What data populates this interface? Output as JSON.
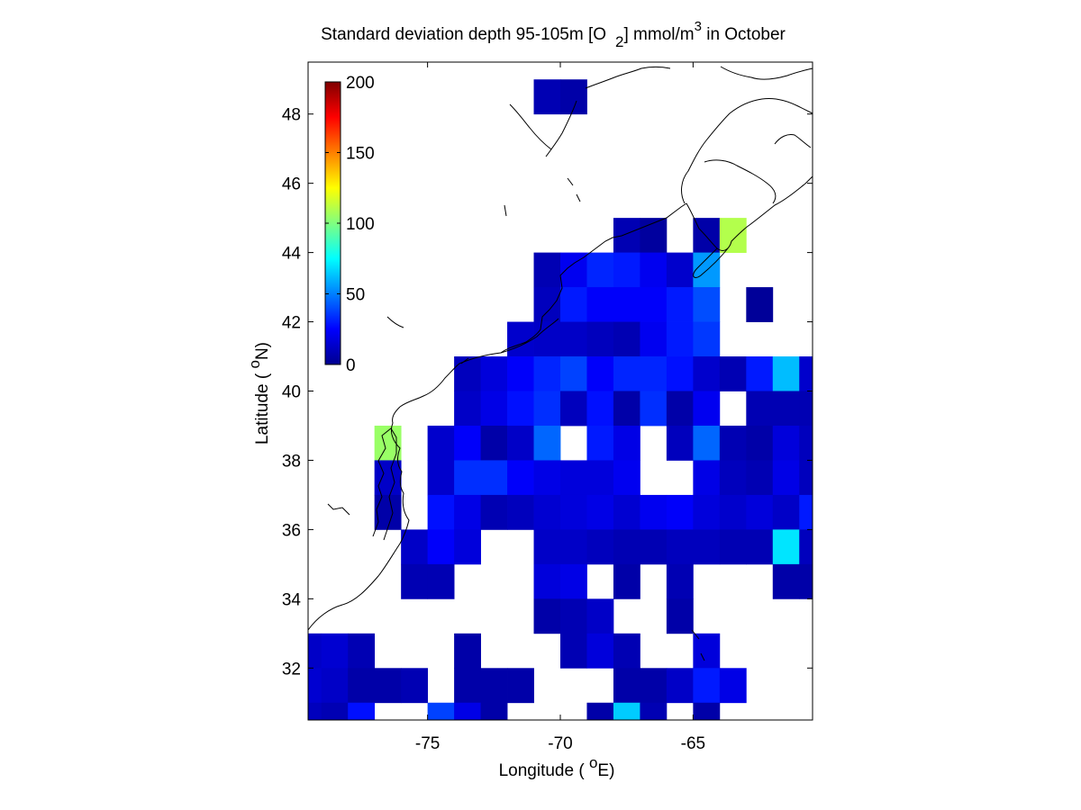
{
  "chart_data": {
    "type": "heatmap",
    "title_main": "Standard deviation depth 95-105m [O",
    "title_sub": "2",
    "title_unit": "] mmol/m",
    "title_sup": "3",
    "title_tail": " in October",
    "xlabel_main": "Longitude ( ",
    "xlabel_sup": "o",
    "xlabel_tail": "E)",
    "ylabel_main": "Latitude ( ",
    "ylabel_sup": "o",
    "ylabel_tail": "N)",
    "xlim": [
      -79.5,
      -60.5
    ],
    "ylim": [
      30.5,
      49.5
    ],
    "x_ticks": [
      -75,
      -70,
      -65
    ],
    "x_tick_labels": [
      "-75",
      "-70",
      "-65"
    ],
    "y_ticks": [
      32,
      34,
      36,
      38,
      40,
      42,
      44,
      46,
      48
    ],
    "y_tick_labels": [
      "32",
      "34",
      "36",
      "38",
      "40",
      "42",
      "44",
      "46",
      "48"
    ],
    "colorbar": {
      "colormap": "jet",
      "range": [
        0,
        200
      ],
      "ticks": [
        0,
        50,
        100,
        150,
        200
      ],
      "tick_labels": [
        "0",
        "50",
        "100",
        "150",
        "200"
      ]
    },
    "cell_size_deg": 1,
    "rows": [
      {
        "lat": 48.5,
        "cells": [
          [
            -70.5,
            10
          ],
          [
            -69.5,
            8
          ]
        ]
      },
      {
        "lat": 44.5,
        "cells": [
          [
            -67.5,
            10
          ],
          [
            -66.5,
            6
          ],
          [
            -64.5,
            8
          ],
          [
            -63.5,
            110
          ]
        ]
      },
      {
        "lat": 43.5,
        "cells": [
          [
            -70.5,
            10
          ],
          [
            -69.5,
            22
          ],
          [
            -68.5,
            32
          ],
          [
            -67.5,
            30
          ],
          [
            -66.5,
            22
          ],
          [
            -65.5,
            15
          ],
          [
            -64.5,
            55
          ]
        ]
      },
      {
        "lat": 42.5,
        "cells": [
          [
            -70.5,
            12
          ],
          [
            -69.5,
            30
          ],
          [
            -68.5,
            24
          ],
          [
            -67.5,
            24
          ],
          [
            -66.5,
            24
          ],
          [
            -65.5,
            30
          ],
          [
            -64.5,
            40
          ],
          [
            -62.5,
            5
          ]
        ]
      },
      {
        "lat": 41.5,
        "cells": [
          [
            -71.5,
            15
          ],
          [
            -70.5,
            14
          ],
          [
            -69.5,
            14
          ],
          [
            -68.5,
            12
          ],
          [
            -67.5,
            10
          ],
          [
            -66.5,
            22
          ],
          [
            -65.5,
            30
          ],
          [
            -64.5,
            36
          ]
        ]
      },
      {
        "lat": 40.5,
        "cells": [
          [
            -73.5,
            12
          ],
          [
            -72.5,
            18
          ],
          [
            -71.5,
            24
          ],
          [
            -70.5,
            32
          ],
          [
            -69.5,
            38
          ],
          [
            -68.5,
            24
          ],
          [
            -67.5,
            32
          ],
          [
            -66.5,
            32
          ],
          [
            -65.5,
            28
          ],
          [
            -64.5,
            15
          ],
          [
            -63.5,
            10
          ],
          [
            -62.5,
            30
          ],
          [
            -61.5,
            62
          ],
          [
            -60.5,
            15
          ]
        ]
      },
      {
        "lat": 39.5,
        "cells": [
          [
            -73.5,
            14
          ],
          [
            -72.5,
            20
          ],
          [
            -71.5,
            28
          ],
          [
            -70.5,
            34
          ],
          [
            -69.5,
            12
          ],
          [
            -68.5,
            28
          ],
          [
            -67.5,
            8
          ],
          [
            -66.5,
            34
          ],
          [
            -65.5,
            8
          ],
          [
            -64.5,
            22
          ],
          [
            -62.5,
            10
          ],
          [
            -61.5,
            10
          ],
          [
            -60.5,
            10
          ]
        ]
      },
      {
        "lat": 38.5,
        "cells": [
          [
            -76.5,
            105
          ],
          [
            -74.5,
            15
          ],
          [
            -73.5,
            24
          ],
          [
            -72.5,
            8
          ],
          [
            -71.5,
            14
          ],
          [
            -70.5,
            45
          ],
          [
            -68.5,
            30
          ],
          [
            -67.5,
            20
          ],
          [
            -65.5,
            12
          ],
          [
            -64.5,
            45
          ],
          [
            -63.5,
            10
          ],
          [
            -62.5,
            8
          ],
          [
            -61.5,
            18
          ],
          [
            -60.5,
            12
          ]
        ]
      },
      {
        "lat": 37.5,
        "cells": [
          [
            -76.5,
            14
          ],
          [
            -74.5,
            15
          ],
          [
            -73.5,
            34
          ],
          [
            -72.5,
            34
          ],
          [
            -71.5,
            24
          ],
          [
            -70.5,
            20
          ],
          [
            -69.5,
            18
          ],
          [
            -68.5,
            18
          ],
          [
            -67.5,
            22
          ],
          [
            -64.5,
            20
          ],
          [
            -63.5,
            12
          ],
          [
            -62.5,
            10
          ],
          [
            -61.5,
            20
          ],
          [
            -60.5,
            12
          ]
        ]
      },
      {
        "lat": 36.5,
        "cells": [
          [
            -76.5,
            8
          ],
          [
            -74.5,
            28
          ],
          [
            -73.5,
            20
          ],
          [
            -72.5,
            10
          ],
          [
            -71.5,
            12
          ],
          [
            -70.5,
            16
          ],
          [
            -69.5,
            18
          ],
          [
            -68.5,
            20
          ],
          [
            -67.5,
            16
          ],
          [
            -66.5,
            22
          ],
          [
            -65.5,
            24
          ],
          [
            -64.5,
            18
          ],
          [
            -63.5,
            15
          ],
          [
            -62.5,
            18
          ],
          [
            -61.5,
            14
          ],
          [
            -60.5,
            30
          ]
        ]
      },
      {
        "lat": 35.5,
        "cells": [
          [
            -75.5,
            14
          ],
          [
            -74.5,
            24
          ],
          [
            -73.5,
            18
          ],
          [
            -70.5,
            14
          ],
          [
            -69.5,
            14
          ],
          [
            -68.5,
            12
          ],
          [
            -67.5,
            10
          ],
          [
            -66.5,
            10
          ],
          [
            -65.5,
            12
          ],
          [
            -64.5,
            12
          ],
          [
            -63.5,
            10
          ],
          [
            -62.5,
            10
          ],
          [
            -61.5,
            70
          ],
          [
            -60.5,
            12
          ]
        ]
      },
      {
        "lat": 34.5,
        "cells": [
          [
            -75.5,
            10
          ],
          [
            -74.5,
            10
          ],
          [
            -70.5,
            18
          ],
          [
            -69.5,
            20
          ],
          [
            -67.5,
            8
          ],
          [
            -65.5,
            10
          ],
          [
            -61.5,
            8
          ],
          [
            -60.5,
            8
          ]
        ]
      },
      {
        "lat": 33.5,
        "cells": [
          [
            -70.5,
            8
          ],
          [
            -69.5,
            10
          ],
          [
            -68.5,
            14
          ],
          [
            -65.5,
            8
          ]
        ]
      },
      {
        "lat": 32.5,
        "cells": [
          [
            -79.5,
            14
          ],
          [
            -78.5,
            16
          ],
          [
            -77.5,
            10
          ],
          [
            -73.5,
            8
          ],
          [
            -69.5,
            10
          ],
          [
            -68.5,
            18
          ],
          [
            -67.5,
            10
          ],
          [
            -64.5,
            18
          ]
        ]
      },
      {
        "lat": 31.5,
        "cells": [
          [
            -79.5,
            16
          ],
          [
            -78.5,
            14
          ],
          [
            -77.5,
            8
          ],
          [
            -76.5,
            8
          ],
          [
            -75.5,
            10
          ],
          [
            -73.5,
            8
          ],
          [
            -72.5,
            8
          ],
          [
            -71.5,
            8
          ],
          [
            -67.5,
            8
          ],
          [
            -66.5,
            8
          ],
          [
            -65.5,
            14
          ],
          [
            -64.5,
            30
          ],
          [
            -63.5,
            20
          ]
        ]
      },
      {
        "lat": 30.5,
        "cells": [
          [
            -79.5,
            12
          ],
          [
            -78.5,
            10
          ],
          [
            -77.5,
            28
          ],
          [
            -74.5,
            38
          ],
          [
            -73.5,
            20
          ],
          [
            -72.5,
            8
          ],
          [
            -68.5,
            8
          ],
          [
            -67.5,
            65
          ],
          [
            -66.5,
            10
          ],
          [
            -64.5,
            8
          ]
        ]
      }
    ]
  }
}
